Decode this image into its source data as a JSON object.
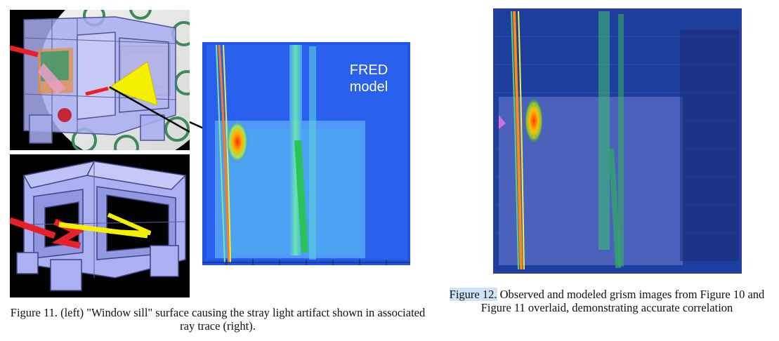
{
  "figure11": {
    "panel_text": {
      "fred_line1": "FRED",
      "fred_line2": "model"
    },
    "caption": "Figure 11. (left) \"Window sill\" surface causing the stray light artifact shown in associated ray trace (right)."
  },
  "figure12": {
    "caption_label": "Figure 12.",
    "caption_text": " Observed and modeled grism images from Figure 10 and Figure 11 overlaid, demonstrating accurate correlation"
  },
  "colors": {
    "structure": "#9a9fe8",
    "ray_red": "#e8202a",
    "ray_yellow": "#f4f000",
    "background_blue": "#1f55e6",
    "highlight": "#cfe3f4"
  }
}
